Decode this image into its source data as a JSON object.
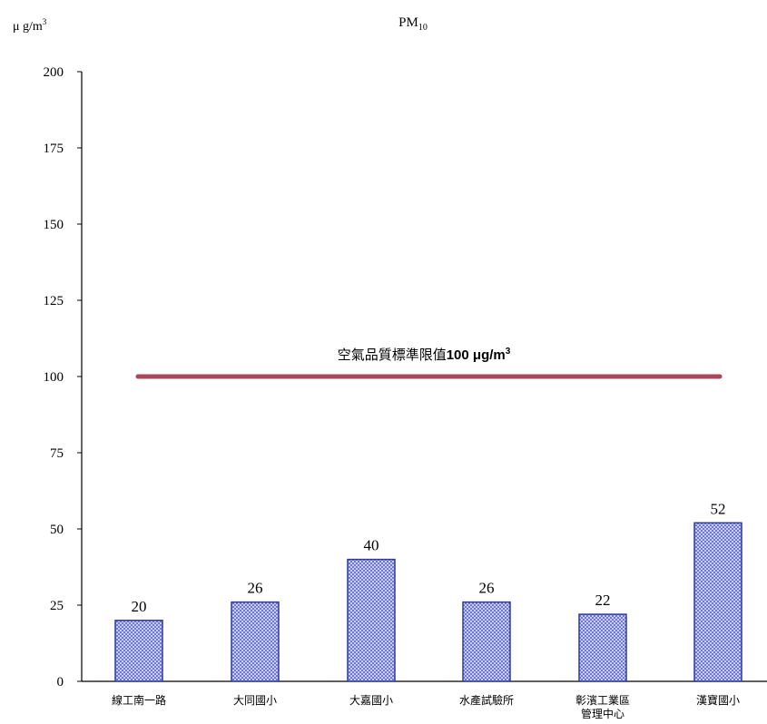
{
  "chart_data": {
    "type": "bar",
    "title_main": "PM",
    "title_sub": "10",
    "ylabel_prefix": "μ g/m",
    "ylabel_sup": "3",
    "ylim": [
      0,
      200
    ],
    "yticks": [
      "0",
      "25",
      "50",
      "75",
      "100",
      "125",
      "150",
      "175",
      "200"
    ],
    "categories": [
      [
        "線工南一路"
      ],
      [
        "大同國小"
      ],
      [
        "大嘉國小"
      ],
      [
        "水產試驗所"
      ],
      [
        "彰濱工業區",
        "管理中心"
      ],
      [
        "漢寶國小"
      ]
    ],
    "values": [
      20,
      26,
      40,
      26,
      22,
      52
    ],
    "value_labels": [
      "20",
      "26",
      "40",
      "26",
      "22",
      "52"
    ],
    "reference_line": {
      "value": 100,
      "label_main": "空氣品質標準限值",
      "label_bold": "100 μg/m",
      "label_sup": "3",
      "color": "#a8485a"
    },
    "colors": {
      "bar_fill": "#9ea6ea",
      "bar_stroke": "#2e3a9a",
      "axis": "#000000"
    }
  }
}
